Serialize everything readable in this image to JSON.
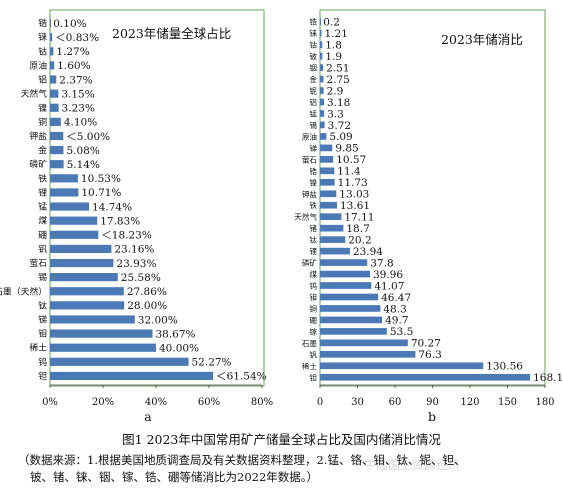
{
  "figure": {
    "caption": "图1  2023年中国常用矿产储量全球占比及国内储消比情况",
    "source_line1": "（数据来源：1.根据美国地质调查局及有关数据资料整理，2.锰、铬、钼、钛、铌、钽、",
    "source_line2": "铍、锗、铼、铟、镓、锆、硼等储消比为2022年数据。）",
    "watermark": "中国国土资源经济"
  },
  "chart_data": [
    {
      "type": "bar",
      "orientation": "horizontal",
      "panel_label": "a",
      "title": "2023年储量全球占比",
      "categories": [
        "锆",
        "铼",
        "钴",
        "原油",
        "铝",
        "天然气",
        "镍",
        "铜",
        "钾盐",
        "金",
        "磷矿",
        "铁",
        "锂",
        "锰",
        "煤",
        "硼",
        "钒",
        "萤石",
        "锡",
        "石墨（天然）",
        "钛",
        "锑",
        "钼",
        "稀土",
        "钨",
        "钽"
      ],
      "values": [
        0.1,
        0.83,
        1.27,
        1.6,
        2.37,
        3.15,
        3.23,
        4.1,
        5.0,
        5.08,
        5.14,
        10.53,
        10.71,
        14.74,
        17.83,
        18.23,
        23.16,
        23.93,
        25.58,
        27.86,
        28.0,
        32.0,
        38.67,
        40.0,
        52.27,
        61.54
      ],
      "value_labels": [
        "0.10%",
        "＜0.83%",
        "1.27%",
        "1.60%",
        "2.37%",
        "3.15%",
        "3.23%",
        "4.10%",
        "＜5.00%",
        "5.08%",
        "5.14%",
        "10.53%",
        "10.71%",
        "14.74%",
        "17.83%",
        "＜18.23%",
        "23.16%",
        "23.93%",
        "25.58%",
        "27.86%",
        "28.00%",
        "32.00%",
        "38.67%",
        "40.00%",
        "52.27%",
        "＜61.54%"
      ],
      "xlim": [
        0,
        80
      ],
      "xticks": [
        "0%",
        "20%",
        "40%",
        "60%",
        "80%"
      ],
      "color": "#4a79b6",
      "frame_color": "#7bb66e"
    },
    {
      "type": "bar",
      "orientation": "horizontal",
      "panel_label": "b",
      "title": "2023年储消比",
      "categories": [
        "锆",
        "铼",
        "钴",
        "铍",
        "铟",
        "金",
        "铌",
        "铝",
        "锰",
        "锡",
        "原油",
        "锑",
        "萤石",
        "锆",
        "镍",
        "钾盐",
        "铁",
        "天然气",
        "锗",
        "钛",
        "锂",
        "磷矿",
        "煤",
        "钨",
        "钼",
        "铜",
        "硼",
        "镓",
        "石墨",
        "钒",
        "稀土",
        "钽"
      ],
      "values": [
        0.2,
        1.21,
        1.8,
        1.9,
        2.51,
        2.75,
        2.9,
        3.18,
        3.3,
        3.72,
        5.09,
        9.85,
        10.57,
        11.4,
        11.73,
        13.03,
        13.61,
        17.11,
        18.7,
        20.2,
        23.94,
        37.8,
        39.96,
        41.07,
        46.47,
        48.3,
        49.7,
        53.5,
        70.27,
        76.3,
        130.56,
        168.1
      ],
      "value_labels": [
        "0.2",
        "1.21",
        "1.8",
        "1.9",
        "2.51",
        "2.75",
        "2.9",
        "3.18",
        "3.3",
        "3.72",
        "5.09",
        "9.85",
        "10.57",
        "11.4",
        "11.73",
        "13.03",
        "13.61",
        "17.11",
        "18.7",
        "20.2",
        "23.94",
        "37.8",
        "39.96",
        "41.07",
        "46.47",
        "48.3",
        "49.7",
        "53.5",
        "70.27",
        "76.3",
        "130.56",
        "168.1"
      ],
      "xlim": [
        0,
        180
      ],
      "xticks": [
        "0",
        "30",
        "60",
        "90",
        "120",
        "150",
        "180"
      ],
      "color": "#4a79b6",
      "frame_color": "#7bb66e"
    }
  ]
}
